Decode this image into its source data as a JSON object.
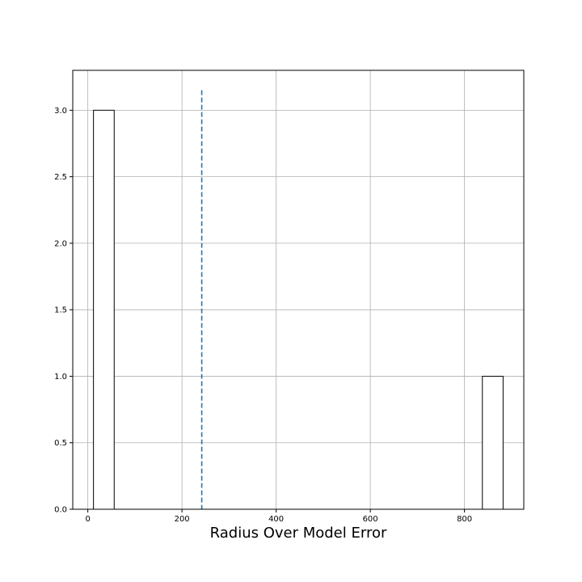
{
  "chart_data": {
    "type": "bar",
    "title": "",
    "xlabel": "Radius Over Model Error",
    "ylabel": "",
    "grid": true,
    "bars": [
      {
        "x0": 12,
        "x1": 56,
        "value": 3
      },
      {
        "x0": 838,
        "x1": 882,
        "value": 1
      }
    ],
    "reference_line": {
      "x": 242,
      "style": "dashed",
      "color": "#1f77b4",
      "y_top": 3.15
    },
    "xlim": [
      -32,
      926
    ],
    "ylim": [
      0,
      3.3
    ],
    "x_ticks": [
      0,
      200,
      400,
      600,
      800
    ],
    "x_tick_labels": [
      "0",
      "200",
      "400",
      "600",
      "800"
    ],
    "y_ticks": [
      0.0,
      0.5,
      1.0,
      1.5,
      2.0,
      2.5,
      3.0
    ],
    "y_tick_labels": [
      "0.0",
      "0.5",
      "1.0",
      "1.5",
      "2.0",
      "2.5",
      "3.0"
    ],
    "colors": {
      "bar_fill": "#ffffff",
      "bar_edge": "#000000",
      "grid": "#b0b0b0"
    }
  }
}
